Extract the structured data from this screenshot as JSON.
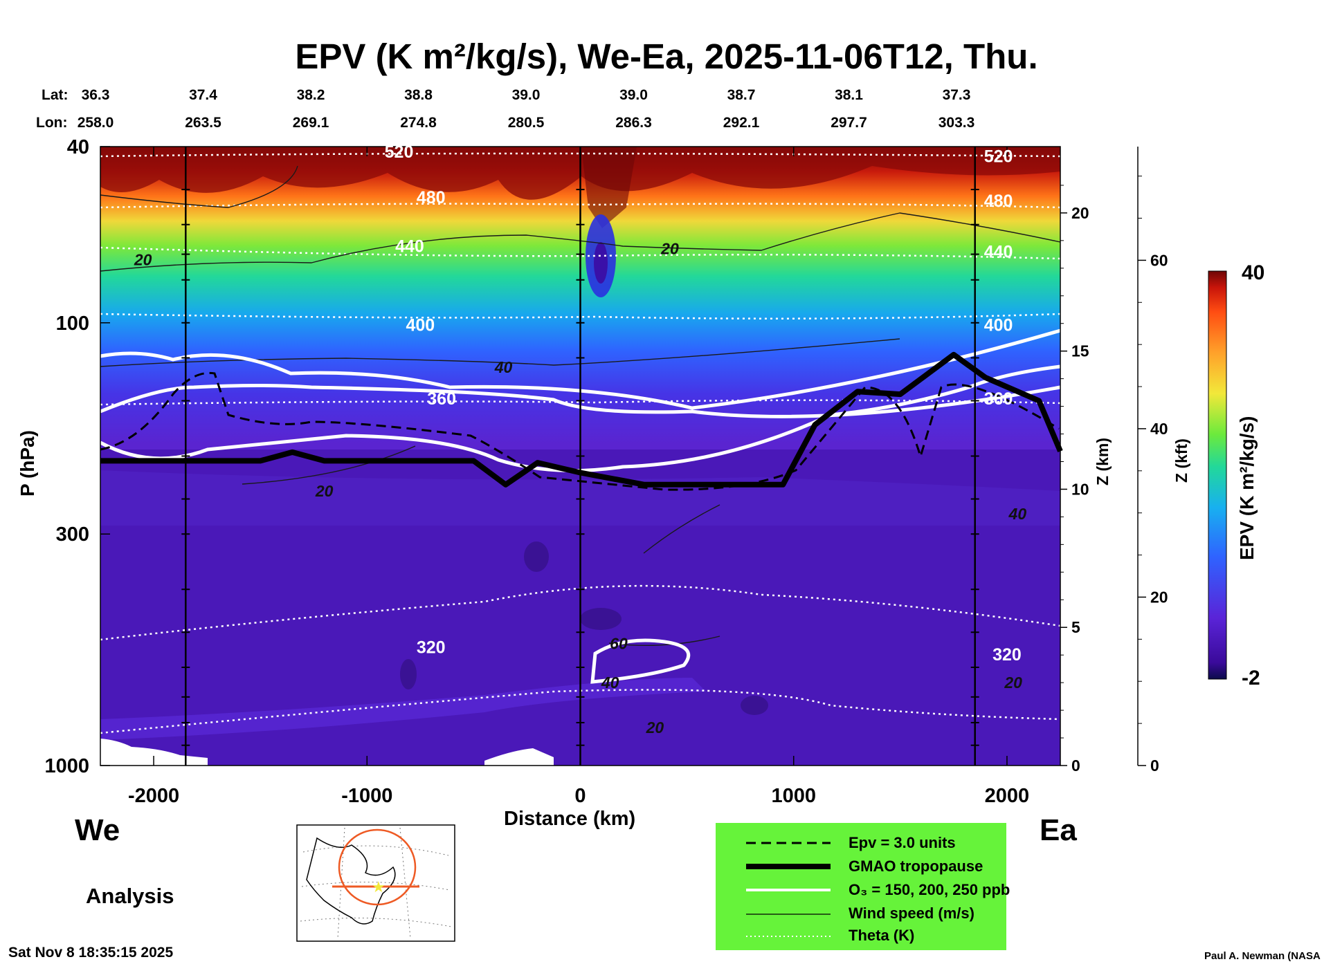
{
  "title": "EPV (K m²/kg/s), We-Ea, 2025-11-06T12, Thu.",
  "coords": {
    "lat_label": "Lat:",
    "lon_label": "Lon:",
    "lat": [
      "36.3",
      "37.4",
      "38.2",
      "38.8",
      "39.0",
      "39.0",
      "38.7",
      "38.1",
      "37.3"
    ],
    "lon": [
      "258.0",
      "263.5",
      "269.1",
      "274.8",
      "280.5",
      "286.3",
      "292.1",
      "297.7",
      "303.3"
    ]
  },
  "chart_data": {
    "type": "heatmap",
    "title": "EPV (K m²/kg/s), We-Ea, 2025-11-06T12, Thu.",
    "xlabel": "Distance (km)",
    "ylabel": "P (hPa)",
    "z_label": "Z (km)",
    "zft_label": "Z (kft)",
    "colorbar_label": "EPV (K m²/kg/s)",
    "colorbar_range": [
      -2,
      40
    ],
    "colorbar_ticks": [
      "40",
      "-2"
    ],
    "xlim": [
      -2250,
      2250
    ],
    "x_ticks": [
      -2000,
      -1000,
      0,
      1000,
      2000
    ],
    "x_tick_labels": [
      "-2000",
      "-1000",
      "0",
      "1000",
      "2000"
    ],
    "p_range_hpa": [
      40,
      1000
    ],
    "p_ticks": [
      40,
      100,
      300,
      1000
    ],
    "p_tick_labels": [
      "40",
      "100",
      "300",
      "1000"
    ],
    "z_km_ticks": [
      0,
      5,
      10,
      15,
      20
    ],
    "z_km_tick_labels": [
      "0",
      "5",
      "10",
      "15",
      "20"
    ],
    "z_kft_ticks": [
      0,
      20,
      40,
      60
    ],
    "z_kft_tick_labels": [
      "0",
      "20",
      "40",
      "60"
    ],
    "vertical_markers_km": [
      -1850,
      0,
      1850
    ],
    "theta_labels": [
      {
        "text": "520",
        "x": -850,
        "p": 41
      },
      {
        "text": "480",
        "x": -700,
        "p": 52
      },
      {
        "text": "440",
        "x": -800,
        "p": 67
      },
      {
        "text": "400",
        "x": -750,
        "p": 101
      },
      {
        "text": "360",
        "x": -650,
        "p": 148
      },
      {
        "text": "320",
        "x": -700,
        "p": 540
      },
      {
        "text": "520",
        "x": 1960,
        "p": 42
      },
      {
        "text": "480",
        "x": 1960,
        "p": 53
      },
      {
        "text": "440",
        "x": 1960,
        "p": 69
      },
      {
        "text": "400",
        "x": 1960,
        "p": 101
      },
      {
        "text": "360",
        "x": 1960,
        "p": 148
      },
      {
        "text": "320",
        "x": 2000,
        "p": 560
      }
    ],
    "wind_labels": [
      {
        "text": "20",
        "x": -2050,
        "p": 72
      },
      {
        "text": "20",
        "x": 420,
        "p": 68
      },
      {
        "text": "40",
        "x": -360,
        "p": 126
      },
      {
        "text": "20",
        "x": -1200,
        "p": 240
      },
      {
        "text": "40",
        "x": 2050,
        "p": 270
      },
      {
        "text": "60",
        "x": 180,
        "p": 530
      },
      {
        "text": "40",
        "x": 140,
        "p": 650
      },
      {
        "text": "20",
        "x": 2030,
        "p": 650
      },
      {
        "text": "20",
        "x": 350,
        "p": 820
      }
    ],
    "tropopause_hpa": [
      {
        "x": -2250,
        "p": 205
      },
      {
        "x": -1500,
        "p": 205
      },
      {
        "x": -1350,
        "p": 196
      },
      {
        "x": -1200,
        "p": 205
      },
      {
        "x": -500,
        "p": 205
      },
      {
        "x": -350,
        "p": 232
      },
      {
        "x": -200,
        "p": 207
      },
      {
        "x": 0,
        "p": 218
      },
      {
        "x": 300,
        "p": 232
      },
      {
        "x": 700,
        "p": 232
      },
      {
        "x": 950,
        "p": 232
      },
      {
        "x": 1100,
        "p": 170
      },
      {
        "x": 1300,
        "p": 143
      },
      {
        "x": 1500,
        "p": 145
      },
      {
        "x": 1750,
        "p": 118
      },
      {
        "x": 1900,
        "p": 133
      },
      {
        "x": 2150,
        "p": 150
      },
      {
        "x": 2250,
        "p": 195
      }
    ],
    "legend": [
      {
        "style": "dashed",
        "label": "Epv = 3.0 units"
      },
      {
        "style": "thick",
        "label": "GMAO tropopause"
      },
      {
        "style": "white",
        "label": "O₃ = 150, 200, 250 ppb"
      },
      {
        "style": "thin",
        "label": "Wind speed (m/s)"
      },
      {
        "style": "dotted",
        "label": "Theta (K)"
      }
    ]
  },
  "side_tags": {
    "west": "We",
    "east": "Ea"
  },
  "analysis_label": "Analysis",
  "footer_date": "Sat Nov  8 18:35:15 2025",
  "credit": "Paul A. Newman (NASA"
}
